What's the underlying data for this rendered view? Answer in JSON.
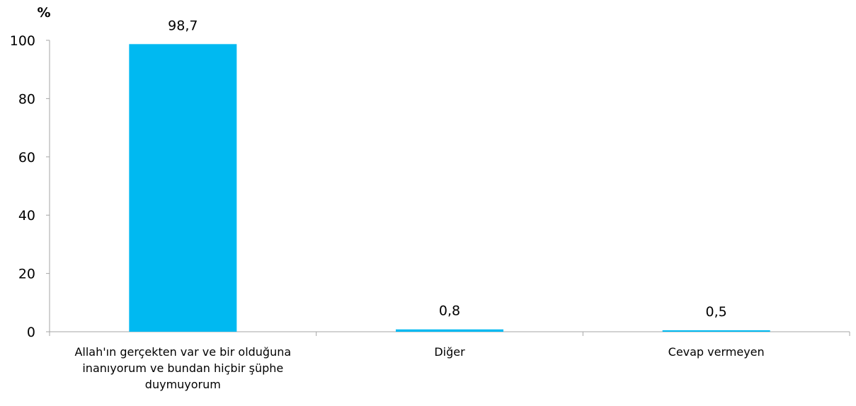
{
  "chart_data": {
    "type": "bar",
    "unit_label": "%",
    "categories": [
      [
        "Allah'ın gerçekten var ve bir olduğuna",
        "inanıyorum ve bundan hiçbir şüphe",
        "duymuyorum"
      ],
      [
        "Diğer"
      ],
      [
        "Cevap vermeyen"
      ]
    ],
    "values": [
      98.7,
      0.8,
      0.5
    ],
    "value_labels": [
      "98,7",
      "0,8",
      "0,5"
    ],
    "ylim": [
      0,
      100
    ],
    "yticks": [
      0,
      20,
      40,
      60,
      80,
      100
    ],
    "xlabel": "",
    "ylabel": "",
    "grid": false,
    "bar_color": "#00B9F1",
    "axis_color": "#A6A6A6"
  }
}
